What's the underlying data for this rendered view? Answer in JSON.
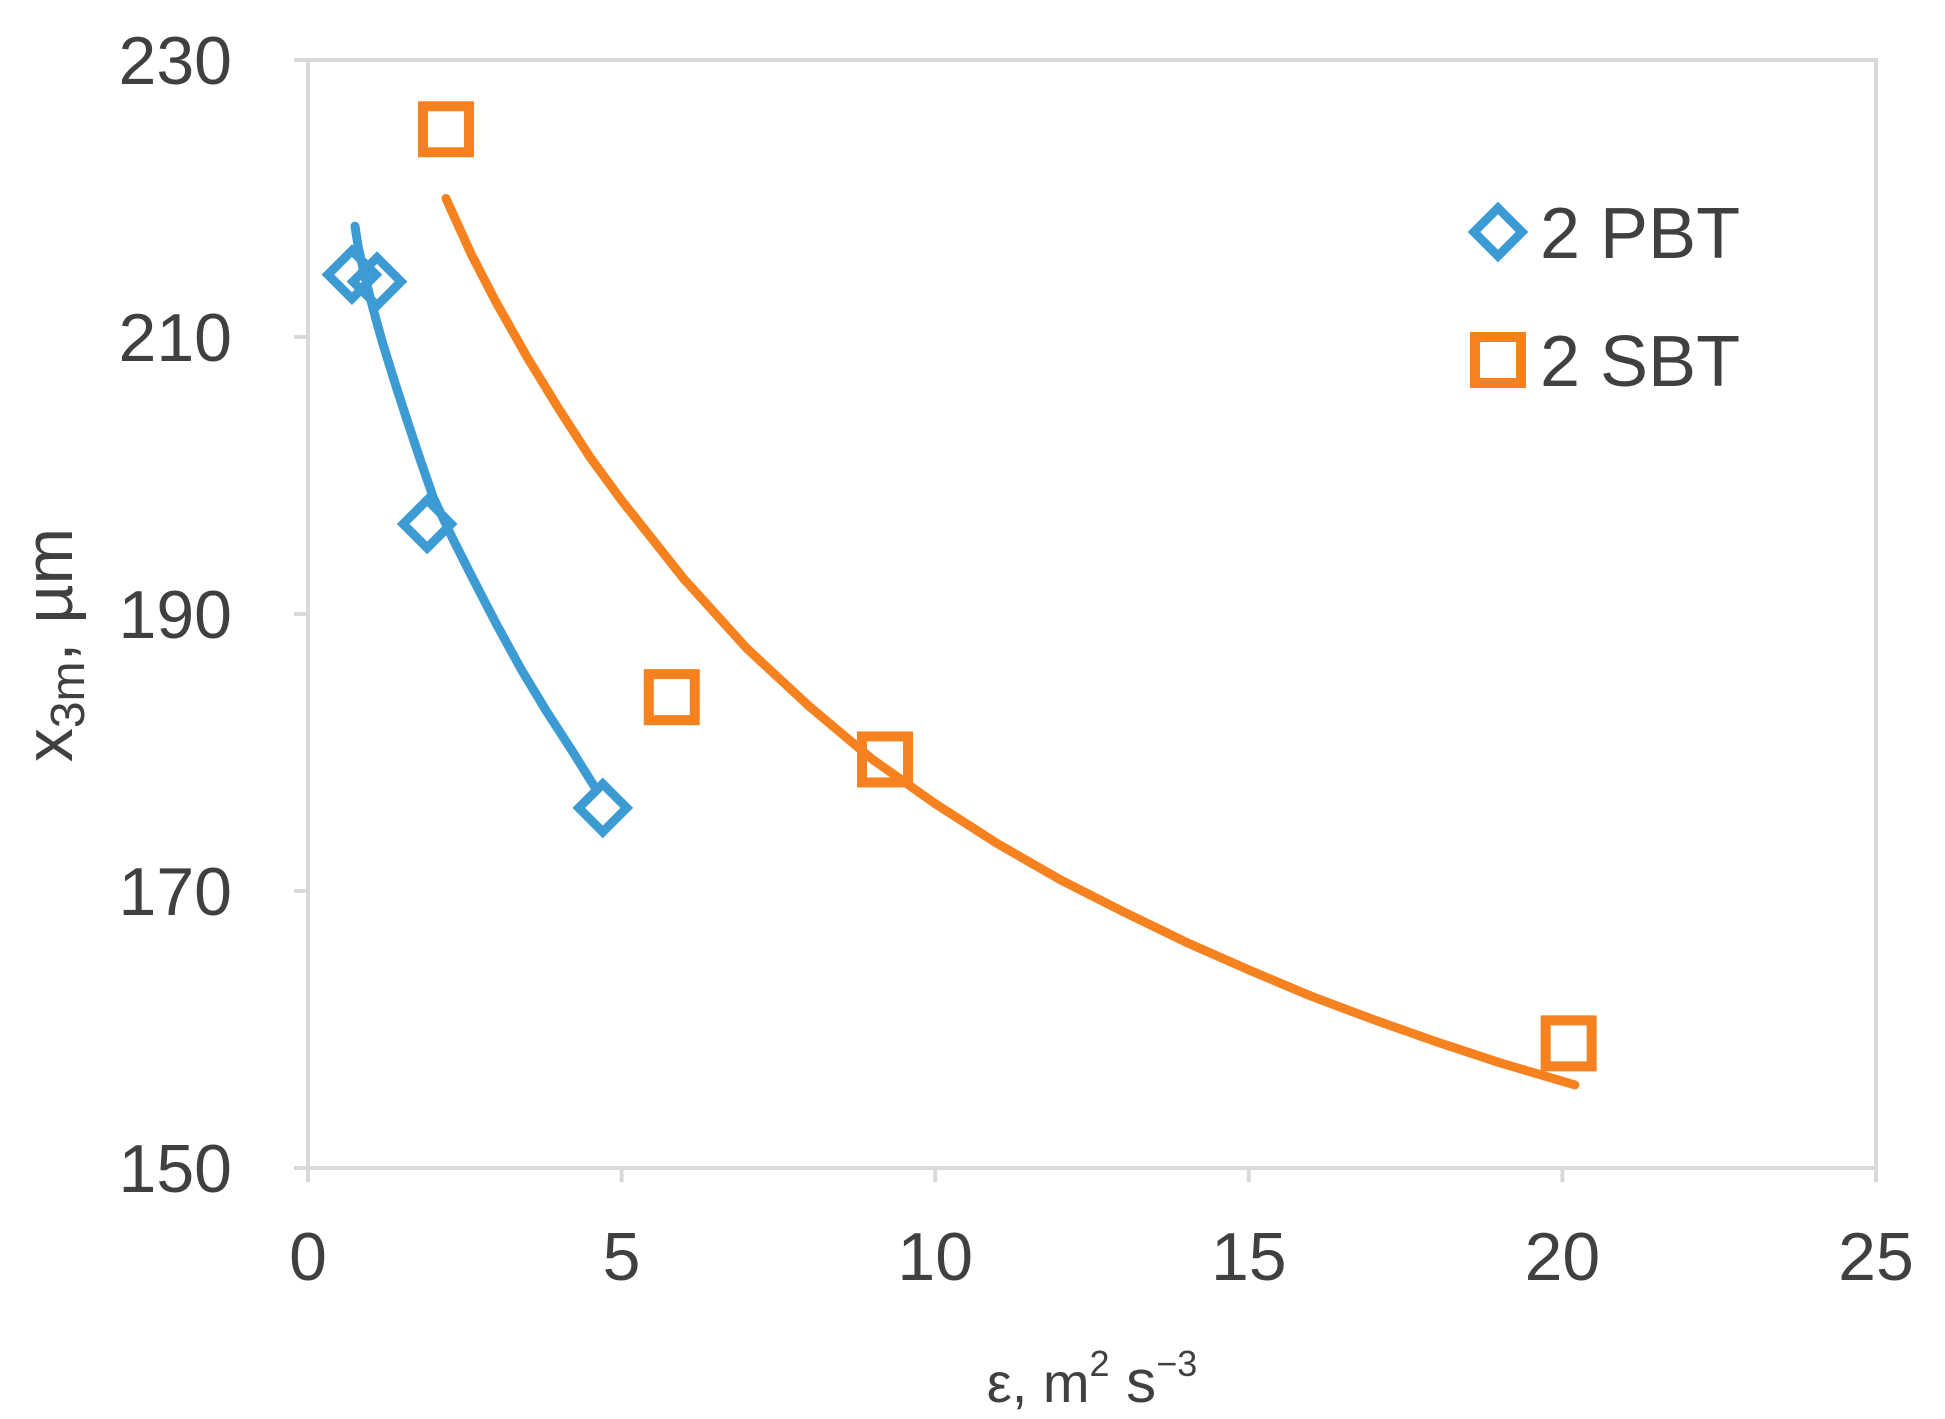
{
  "chart_data": {
    "type": "scatter",
    "xlabel": "ε, m² s⁻³",
    "ylabel": "x3m, µm",
    "xlim": [
      0,
      25
    ],
    "ylim": [
      150,
      230
    ],
    "x_ticks": [
      "0",
      "5",
      "10",
      "15",
      "20",
      "25"
    ],
    "y_ticks": [
      "150",
      "170",
      "190",
      "210",
      "230"
    ],
    "grid": false,
    "legend_position": "top-right",
    "series": [
      {
        "name": "2 PBT",
        "marker": "diamond",
        "color": "#3d9bd4",
        "x": [
          0.7,
          1.1,
          1.9,
          4.7
        ],
        "y": [
          214.5,
          214.0,
          196.5,
          176.0
        ]
      },
      {
        "name": "2 SBT",
        "marker": "square",
        "color": "#f5821f",
        "x": [
          2.2,
          5.8,
          9.2,
          20.1
        ],
        "y": [
          225,
          184,
          179.5,
          159
        ]
      }
    ],
    "fit_curves": [
      {
        "series": "2 PBT",
        "color": "#3d9bd4",
        "x": [
          0.75,
          0.8,
          0.9,
          1.0,
          1.1,
          1.2,
          1.4,
          1.6,
          1.8,
          2.0,
          2.3,
          2.6,
          3.0,
          3.4,
          3.8,
          4.2,
          4.6
        ],
        "y": [
          218,
          216.5,
          214.5,
          212.7,
          211.0,
          209.4,
          206.5,
          203.7,
          201.0,
          198.4,
          195.5,
          192.8,
          189.3,
          186.0,
          183.0,
          180.2,
          177.3
        ]
      },
      {
        "series": "2 SBT",
        "color": "#f5821f",
        "x": [
          2.2,
          2.6,
          3.0,
          3.5,
          4.0,
          4.5,
          5.0,
          6.0,
          7.0,
          8.0,
          9.0,
          10.0,
          11.0,
          12.0,
          13.0,
          14.0,
          15.0,
          16.0,
          17.0,
          18.0,
          19.0,
          20.2
        ],
        "y": [
          220,
          216,
          212.5,
          208.5,
          204.8,
          201.3,
          198.2,
          192.5,
          187.5,
          183.3,
          179.5,
          176.3,
          173.4,
          170.8,
          168.5,
          166.3,
          164.3,
          162.4,
          160.7,
          159.1,
          157.6,
          156.0
        ]
      }
    ]
  }
}
